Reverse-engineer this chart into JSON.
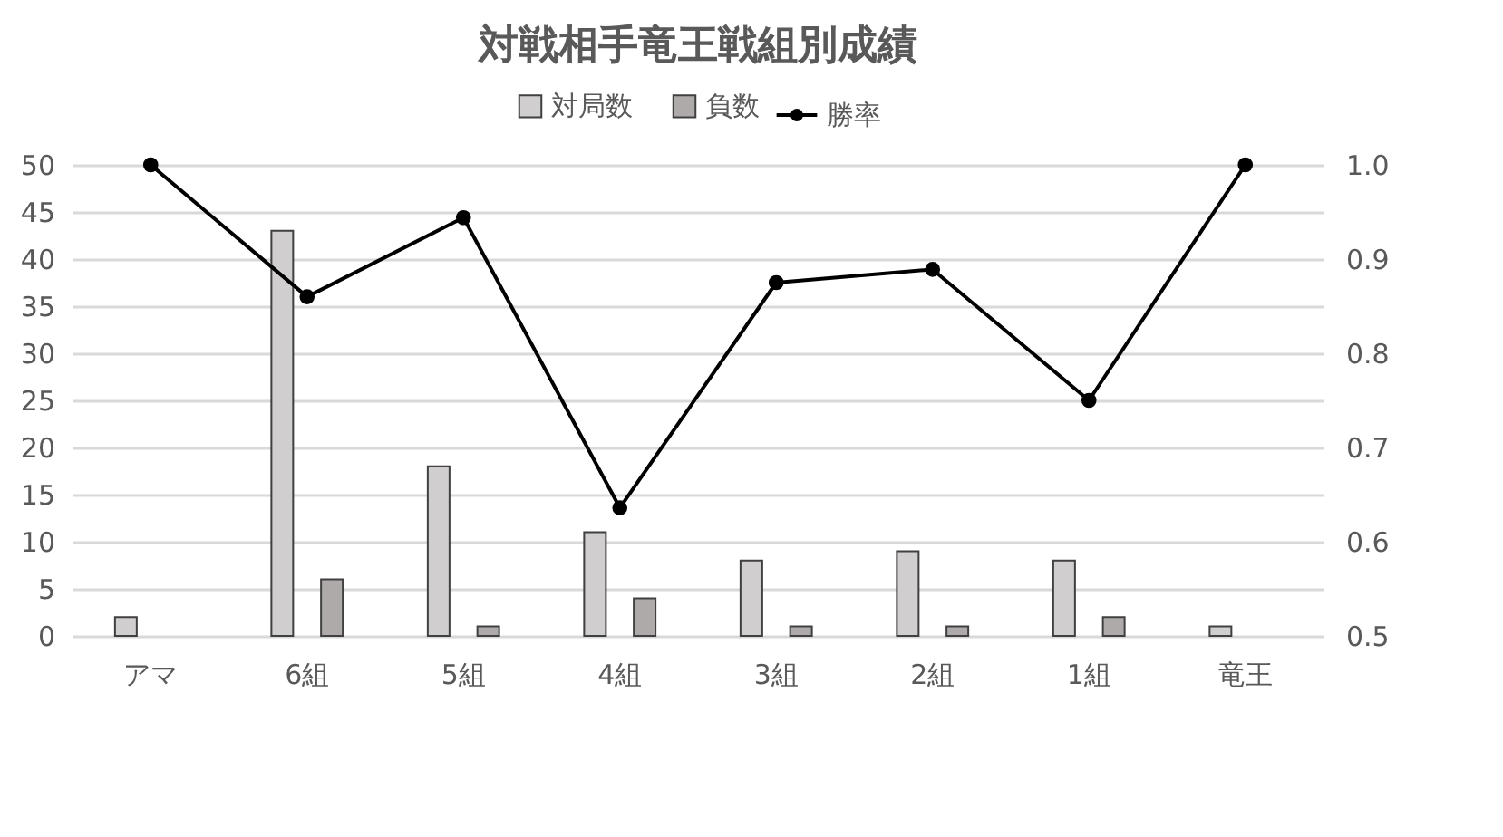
{
  "chart_data": {
    "type": "bar",
    "title": "対戦相手竜王戦組別成績",
    "categories": [
      "アマ",
      "6組",
      "5組",
      "4組",
      "3組",
      "2組",
      "1組",
      "竜王"
    ],
    "series": [
      {
        "name": "対局数",
        "color": "#d0cece",
        "values": [
          2,
          43,
          18,
          11,
          8,
          9,
          8,
          1
        ]
      },
      {
        "name": "負数",
        "color": "#aeaaaa",
        "values": [
          0,
          6,
          1,
          4,
          1,
          1,
          2,
          0
        ]
      },
      {
        "name": "勝率",
        "type": "line",
        "axis": "y2",
        "color": "#000000",
        "marker": "circle",
        "values": [
          1.0,
          0.86,
          0.944,
          0.636,
          0.875,
          0.889,
          0.75,
          1.0
        ]
      }
    ],
    "ylim": [
      0,
      50
    ],
    "yticks": [
      0,
      5,
      10,
      15,
      20,
      25,
      30,
      35,
      40,
      45,
      50
    ],
    "y2lim": [
      0.5,
      1.0
    ],
    "y2ticks": [
      {
        "value": 0.5,
        "label": "0.5"
      },
      {
        "value": 0.6,
        "label": "0.6"
      },
      {
        "value": 0.7,
        "label": "0.7"
      },
      {
        "value": 0.8,
        "label": "0.8"
      },
      {
        "value": 0.9,
        "label": "0.9"
      },
      {
        "value": 1,
        "label": "1.0"
      }
    ],
    "grid": "y",
    "legend": "top"
  }
}
